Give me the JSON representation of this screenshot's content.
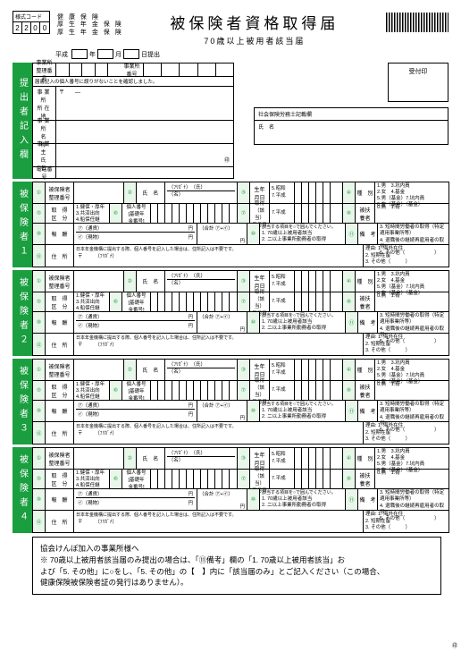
{
  "header": {
    "code_label": "様式コード",
    "code": [
      "2",
      "2",
      "0",
      "0"
    ],
    "ins_line1": "健 康 保 険",
    "ins_line2": "厚 生 年 金 保 険",
    "ins_line3": "厚 生 年 金 保 険",
    "title": "被保険者資格取得届",
    "subtitle": "70歳以上被用者該当届",
    "era": "平成",
    "y": "年",
    "m": "月",
    "d": "日提出"
  },
  "submitter": {
    "tab": "提出者記入欄",
    "row1_l": "事業所\n整理番号",
    "row1_r": "事業所\n番号",
    "note": "届書記入の個人番号に誤りがないことを確認しました。",
    "addr_l": "事業所\n所在地",
    "addr_post": "〒　　―",
    "name_l": "事業所\n名　称",
    "owner_l": "事業主\n氏　名",
    "seal": "㊞",
    "tel_l": "電話番号",
    "stamp": "受付印",
    "sr_title": "社会保険労務士記載欄",
    "sr_name": "氏　名"
  },
  "person": {
    "tabs": [
      "被保険者１",
      "被保険者２",
      "被保険者３",
      "被保険者４"
    ],
    "r1": {
      "n1": "①",
      "bango": "被保険者\n整理番号",
      "n2": "②",
      "furi": "（ﾌﾘｶﾞﾅ）",
      "shi": "氏　名",
      "sei": "（氏）",
      "mei": "（名）",
      "n3": "③",
      "birth_l": "生年\n月日",
      "era_opts": "5.昭和\n7.平成",
      "y": "年",
      "m": "月",
      "d": "日",
      "n4": "④",
      "type_l": "種　別",
      "type_opts": "1.男　3.坑内員\n2.女　4.基金\n5.男（基金）7.坑内員\n6.女（基金）（基金）"
    },
    "r2": {
      "n5": "⑤",
      "acq_l": "取　得\n区　分",
      "acq_opts": "1.健保・厚年\n3.共済出向\n4.船保任継",
      "n6": "⑥",
      "pn_l": "個人番号\n[基礎年\n金番号]",
      "n7": "⑦",
      "date_l": "取得\n（該当）\n年月日",
      "era2": "7.平成",
      "n8": "⑧",
      "dep_l": "被扶\n養者",
      "dep_opts": "0.無　1.有"
    },
    "r3": {
      "n9": "⑨",
      "pay_l": "報　酬",
      "pay_a": "㋐（通貨）",
      "pay_b": "㋑（現物）",
      "yen": "円",
      "sum": "（合計 ㋐+㋑）",
      "n10": "⑩",
      "cat_l": "該当する項目を○で囲んでください。",
      "cat_opts": "1. 70歳以上被用者該当\n2. 二以上事業所勤務者の取得",
      "n11": "⑪",
      "rem_l": "備　考",
      "rem_opts": "3. 短時間労働者の取得（特定適用事業所等）\n4. 退職後の継続再雇用者の取得\n5. その他（　　　　　　）"
    },
    "r4": {
      "n12": "⑫",
      "addr_l": "住　所",
      "note": "日本年金機構に提出する際、個人番号を記入した場合は、住所記入は不要です。",
      "post": "〒",
      "furi2": "（ﾌﾘｶﾞﾅ）",
      "reason_l": "理由:",
      "reason_opts": "1. 海外在住\n2. 短期在留\n3. その他（　　　）"
    }
  },
  "footer": {
    "l1": "協会けんぽ加入の事業所様へ",
    "l2": "※ 70歳以上被用者該当届のみ提出の場合は、「⑪備考」欄の「1. 70歳以上被用者該当」お",
    "l3": "よび「5. その他」に○をし、「5. その他」の【　】内に「該当届のみ」とご記入ください（この場合、",
    "l4": "健康保険被保険者証の発行はありません）。"
  },
  "colors": {
    "green": "#1a9e3f",
    "light_green": "#e9f7ea"
  }
}
